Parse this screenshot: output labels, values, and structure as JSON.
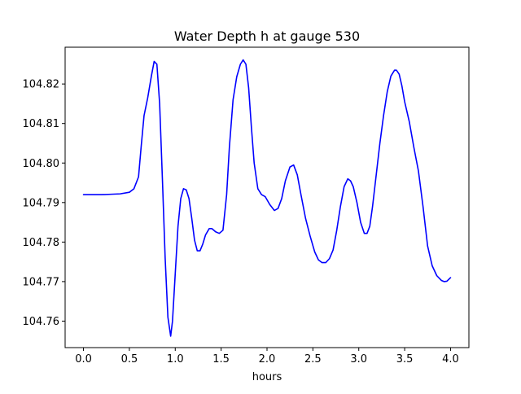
{
  "chart_data": {
    "type": "line",
    "title": "Water Depth h at gauge 530",
    "xlabel": "hours",
    "ylabel": "",
    "xlim": [
      -0.2,
      4.2
    ],
    "ylim": [
      104.7533,
      104.8293
    ],
    "xticks": [
      0.0,
      0.5,
      1.0,
      1.5,
      2.0,
      2.5,
      3.0,
      3.5,
      4.0
    ],
    "xtick_labels": [
      "0.0",
      "0.5",
      "1.0",
      "1.5",
      "2.0",
      "2.5",
      "3.0",
      "3.5",
      "4.0"
    ],
    "yticks": [
      104.76,
      104.77,
      104.78,
      104.79,
      104.8,
      104.81,
      104.82
    ],
    "ytick_labels": [
      "104.76",
      "104.77",
      "104.78",
      "104.79",
      "104.80",
      "104.81",
      "104.82"
    ],
    "grid": false,
    "series": [
      {
        "name": "",
        "color": "#0000ff",
        "x": [
          0.0,
          0.1,
          0.2,
          0.3,
          0.4,
          0.5,
          0.55,
          0.6,
          0.63,
          0.66,
          0.7,
          0.74,
          0.77,
          0.8,
          0.83,
          0.86,
          0.89,
          0.92,
          0.95,
          0.97,
          1.0,
          1.03,
          1.06,
          1.09,
          1.12,
          1.15,
          1.18,
          1.21,
          1.24,
          1.27,
          1.3,
          1.33,
          1.37,
          1.4,
          1.44,
          1.48,
          1.52,
          1.56,
          1.59,
          1.63,
          1.67,
          1.71,
          1.74,
          1.77,
          1.8,
          1.83,
          1.86,
          1.9,
          1.94,
          1.98,
          2.03,
          2.08,
          2.12,
          2.16,
          2.2,
          2.25,
          2.29,
          2.33,
          2.37,
          2.42,
          2.47,
          2.52,
          2.56,
          2.6,
          2.64,
          2.68,
          2.72,
          2.76,
          2.8,
          2.84,
          2.88,
          2.91,
          2.94,
          2.98,
          3.02,
          3.06,
          3.09,
          3.12,
          3.15,
          3.19,
          3.23,
          3.27,
          3.31,
          3.35,
          3.39,
          3.41,
          3.44,
          3.47,
          3.5,
          3.55,
          3.6,
          3.65,
          3.7,
          3.75,
          3.8,
          3.85,
          3.9,
          3.93,
          3.96,
          4.0
        ],
        "y": [
          104.792,
          104.792,
          104.792,
          104.7921,
          104.7922,
          104.7926,
          104.7935,
          104.7965,
          104.8045,
          104.812,
          104.8165,
          104.822,
          104.8257,
          104.825,
          104.815,
          104.796,
          104.776,
          104.761,
          104.7562,
          104.76,
          104.772,
          104.784,
          104.791,
          104.7935,
          104.7932,
          104.791,
          104.786,
          104.7805,
          104.7778,
          104.7778,
          104.7795,
          104.7818,
          104.7834,
          104.7834,
          104.7826,
          104.7822,
          104.783,
          104.792,
          104.804,
          104.816,
          104.8218,
          104.825,
          104.8261,
          104.825,
          104.819,
          104.809,
          104.8,
          104.7935,
          104.792,
          104.7915,
          104.7895,
          104.788,
          104.7885,
          104.791,
          104.7955,
          104.799,
          104.7995,
          104.797,
          104.792,
          104.786,
          104.7815,
          104.7775,
          104.7755,
          104.7748,
          104.7748,
          104.7758,
          104.778,
          104.783,
          104.789,
          104.794,
          104.796,
          104.7955,
          104.794,
          104.79,
          104.785,
          104.7822,
          104.7822,
          104.784,
          104.789,
          104.797,
          104.805,
          104.812,
          104.818,
          104.822,
          104.8235,
          104.8235,
          104.8225,
          104.8195,
          104.8155,
          104.8105,
          104.804,
          104.798,
          104.789,
          104.779,
          104.774,
          104.7715,
          104.7703,
          104.77,
          104.7701,
          104.771
        ]
      }
    ]
  }
}
